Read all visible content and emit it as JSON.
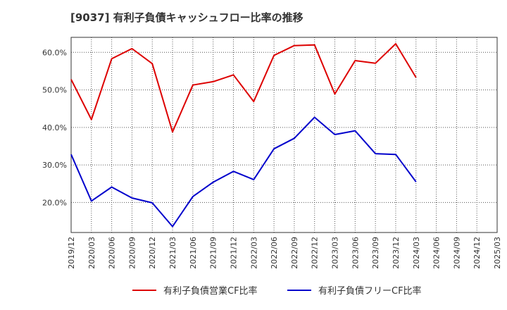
{
  "title": "[9037]  有利子負債キャッシュフロー比率の推移",
  "chart_data": {
    "type": "line",
    "title": "[9037]  有利子負債キャッシュフロー比率の推移",
    "xlabel": "",
    "ylabel": "",
    "x_ticks": [
      "2019/12",
      "2020/03",
      "2020/06",
      "2020/09",
      "2020/12",
      "2021/03",
      "2021/06",
      "2021/09",
      "2021/12",
      "2022/03",
      "2022/06",
      "2022/09",
      "2022/12",
      "2023/03",
      "2023/06",
      "2023/09",
      "2023/12",
      "2024/03",
      "2024/06",
      "2024/09",
      "2024/12",
      "2025/03"
    ],
    "y_ticks": [
      "20.0%",
      "30.0%",
      "40.0%",
      "50.0%",
      "60.0%"
    ],
    "ylim": [
      12.0,
      64.0
    ],
    "grid": true,
    "legend_position": "bottom",
    "series": [
      {
        "name": "有利子負債営業CF比率",
        "color": "#dd0000",
        "x": [
          "2019/12",
          "2020/03",
          "2020/06",
          "2020/09",
          "2020/12",
          "2021/03",
          "2021/06",
          "2021/09",
          "2021/12",
          "2022/03",
          "2022/06",
          "2022/09",
          "2022/12",
          "2023/03",
          "2023/06",
          "2023/09",
          "2023/12",
          "2024/03"
        ],
        "values": [
          52.8,
          42.1,
          58.3,
          61.0,
          57.0,
          38.8,
          51.3,
          52.2,
          54.0,
          46.9,
          59.2,
          61.8,
          62.0,
          48.9,
          57.8,
          57.1,
          62.3,
          53.3
        ]
      },
      {
        "name": "有利子負債フリーCF比率",
        "color": "#0000cc",
        "x": [
          "2019/12",
          "2020/03",
          "2020/06",
          "2020/09",
          "2020/12",
          "2021/03",
          "2021/06",
          "2021/09",
          "2021/12",
          "2022/03",
          "2022/06",
          "2022/09",
          "2022/12",
          "2023/03",
          "2023/06",
          "2023/09",
          "2023/12",
          "2024/03"
        ],
        "values": [
          32.8,
          20.4,
          24.1,
          21.2,
          19.9,
          13.6,
          21.6,
          25.4,
          28.3,
          26.1,
          34.3,
          37.1,
          42.7,
          38.1,
          39.1,
          33.0,
          32.8,
          25.5
        ]
      }
    ]
  }
}
